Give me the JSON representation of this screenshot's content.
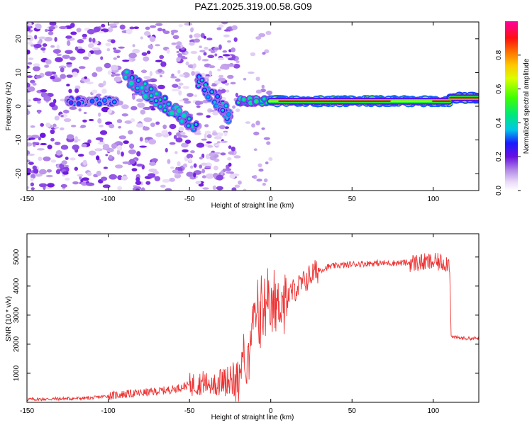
{
  "title": "PAZ1.2025.319.00.58.G09",
  "chart_data": [
    {
      "type": "heatmap",
      "name": "spectrogram",
      "xlabel": "Height of straight line (km)",
      "ylabel": "Frequency (Hz)",
      "xlim": [
        -150,
        128
      ],
      "ylim": [
        -25,
        25
      ],
      "xticks": [
        -150,
        -100,
        -50,
        0,
        50,
        100
      ],
      "yticks": [
        -20,
        -10,
        0,
        10,
        20
      ],
      "colorbar": {
        "label": "Normalized spectral amplitude",
        "range": [
          0,
          1
        ],
        "ticks": [
          0.0,
          0.2,
          0.4,
          0.6,
          0.8
        ]
      },
      "features": [
        {
          "x_range": [
            -150,
            -20
          ],
          "description": "scattered low-amplitude speckle across frequency"
        },
        {
          "x_range": [
            -125,
            -95
          ],
          "freq_hz": 1.5,
          "amplitude": 0.35
        },
        {
          "x_range": [
            -90,
            -45
          ],
          "freq_hz_start": 9,
          "freq_hz_end": -6,
          "amplitude": 0.45
        },
        {
          "x_range": [
            -45,
            -25
          ],
          "freq_hz_start": 8,
          "freq_hz_end": -3,
          "amplitude": 0.4
        },
        {
          "x_range": [
            -20,
            0
          ],
          "freq_hz": 1.5,
          "amplitude": 0.5
        },
        {
          "x_range": [
            0,
            110
          ],
          "freq_hz": 1.5,
          "amplitude": 0.9
        },
        {
          "x_range": [
            110,
            128
          ],
          "freq_hz": 2.5,
          "amplitude": 0.85
        }
      ]
    },
    {
      "type": "line",
      "name": "snr",
      "xlabel": "Height of straight line (km)",
      "ylabel": "SNR (10 * v/v)",
      "xlim": [
        -150,
        128
      ],
      "ylim": [
        0,
        5800
      ],
      "xticks": [
        -150,
        -100,
        -50,
        0,
        50,
        100
      ],
      "yticks": [
        1000,
        2000,
        3000,
        4000,
        5000
      ],
      "color": "#ee3333",
      "x": [
        -150,
        -130,
        -110,
        -100,
        -90,
        -80,
        -70,
        -60,
        -50,
        -40,
        -30,
        -20,
        -15,
        -12,
        -10,
        -5,
        0,
        5,
        10,
        15,
        20,
        25,
        30,
        35,
        40,
        50,
        60,
        70,
        80,
        90,
        100,
        105,
        110,
        111,
        115,
        120,
        128
      ],
      "values": [
        100,
        120,
        150,
        220,
        280,
        320,
        380,
        450,
        600,
        700,
        750,
        900,
        1600,
        2600,
        2900,
        3000,
        3100,
        3400,
        3600,
        3900,
        4100,
        4400,
        4550,
        4650,
        4700,
        4750,
        4780,
        4790,
        4800,
        4800,
        4820,
        4810,
        4800,
        2250,
        2220,
        2200,
        2200
      ]
    }
  ]
}
